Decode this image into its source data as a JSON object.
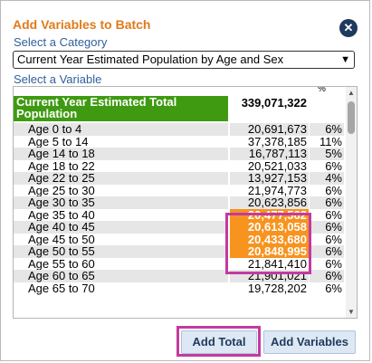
{
  "title": "Add Variables to Batch",
  "close_icon": "close-icon",
  "category": {
    "label": "Select a Category",
    "selected": "Current Year Estimated Population by Age and Sex"
  },
  "variable": {
    "label": "Select a Variable"
  },
  "table": {
    "pct_header": "%",
    "total": {
      "label": "Current Year Estimated Total Population",
      "value": "339,071,322"
    },
    "rows": [
      {
        "label": "Age 0 to 4",
        "value": "20,691,673",
        "pct": "6%"
      },
      {
        "label": "Age 5 to 14",
        "value": "37,378,185",
        "pct": "11%"
      },
      {
        "label": "Age 14 to 18",
        "value": "16,787,113",
        "pct": "5%"
      },
      {
        "label": "Age 18 to 22",
        "value": "20,521,033",
        "pct": "6%"
      },
      {
        "label": "Age 22 to 25",
        "value": "13,927,153",
        "pct": "4%"
      },
      {
        "label": "Age 25 to 30",
        "value": "21,974,773",
        "pct": "6%"
      },
      {
        "label": "Age 30 to 35",
        "value": "20,623,856",
        "pct": "6%"
      },
      {
        "label": "Age 35 to 40",
        "value": "20,477,562",
        "pct": "6%"
      },
      {
        "label": "Age 40 to 45",
        "value": "20,613,058",
        "pct": "6%"
      },
      {
        "label": "Age 45 to 50",
        "value": "20,433,680",
        "pct": "6%"
      },
      {
        "label": "Age 50 to 55",
        "value": "20,848,995",
        "pct": "6%"
      },
      {
        "label": "Age 55 to 60",
        "value": "21,841,410",
        "pct": "6%"
      },
      {
        "label": "Age 60 to 65",
        "value": "21,901,021",
        "pct": "6%"
      },
      {
        "label": "Age 65 to 70",
        "value": "19,728,202",
        "pct": "6%"
      }
    ]
  },
  "buttons": {
    "add_total": "Add Total",
    "add_variables": "Add Variables"
  },
  "colors": {
    "accent": "#e07b1a",
    "total_bg": "#3f9a12",
    "selected_bg": "#f7931e",
    "highlight": "#c43aa0"
  }
}
